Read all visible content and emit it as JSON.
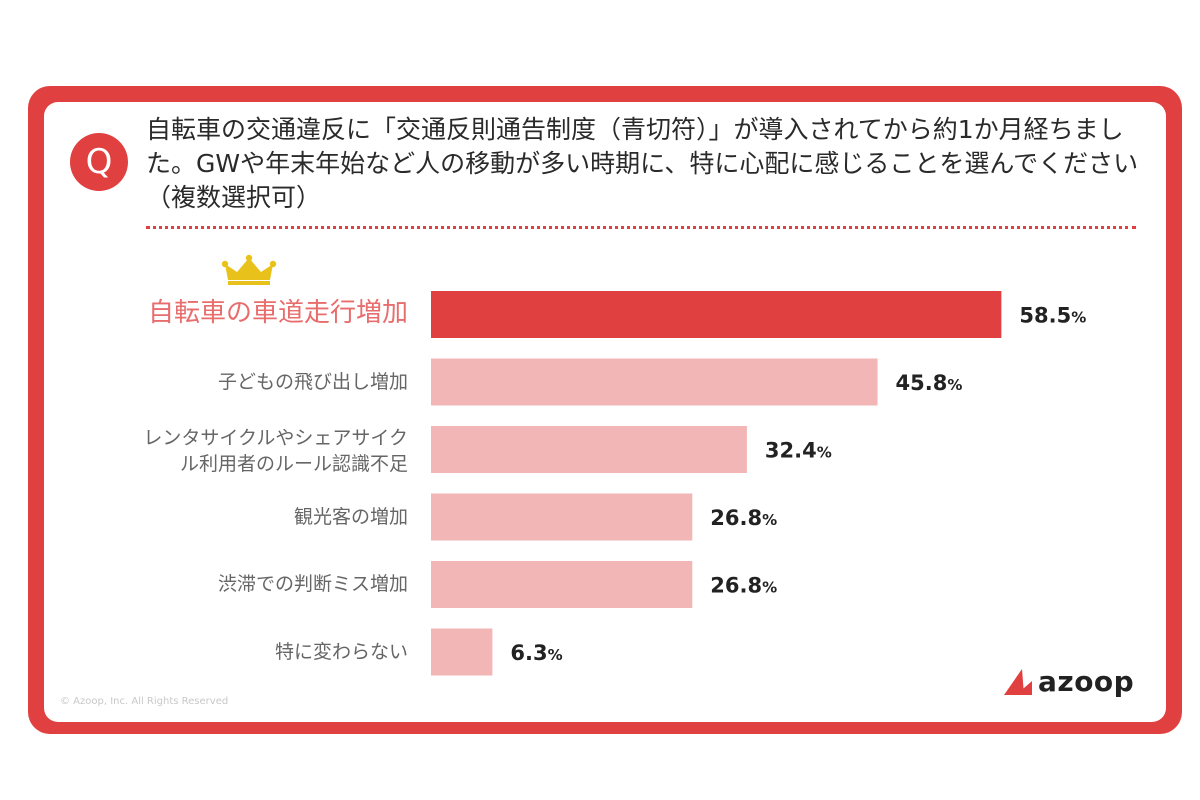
{
  "question": {
    "badge": "Q",
    "text": "自転車の交通違反に「交通反則通告制度（青切符）」が導入されてから約1か月経ちました。GWや年末年始など人の移動が多い時期に、特に心配に感じることを選んでください（複数選択可）"
  },
  "chart_data": {
    "type": "bar",
    "orientation": "horizontal",
    "categories": [
      "自転車の車道走行増加",
      "子どもの飛び出し増加",
      "レンタサイクルやシェアサイク\nル利用者のルール認識不足",
      "観光客の増加",
      "渋滞での判断ミス増加",
      "特に変わらない"
    ],
    "values": [
      58.5,
      45.8,
      32.4,
      26.8,
      26.8,
      6.3
    ],
    "labels": [
      "58.5",
      "45.8",
      "32.4",
      "26.8",
      "26.8",
      "6.3"
    ],
    "unit": "%",
    "xlim": [
      0,
      100
    ],
    "highlight_index": 0,
    "colors": {
      "highlight": "#e0403f",
      "bar": "#f3b6b6",
      "crown": "#e8c21a"
    }
  },
  "brand": {
    "accent": "#e0403f",
    "logo_text": "azoop",
    "copyright": "© Azoop, Inc. All Rights Reserved"
  }
}
